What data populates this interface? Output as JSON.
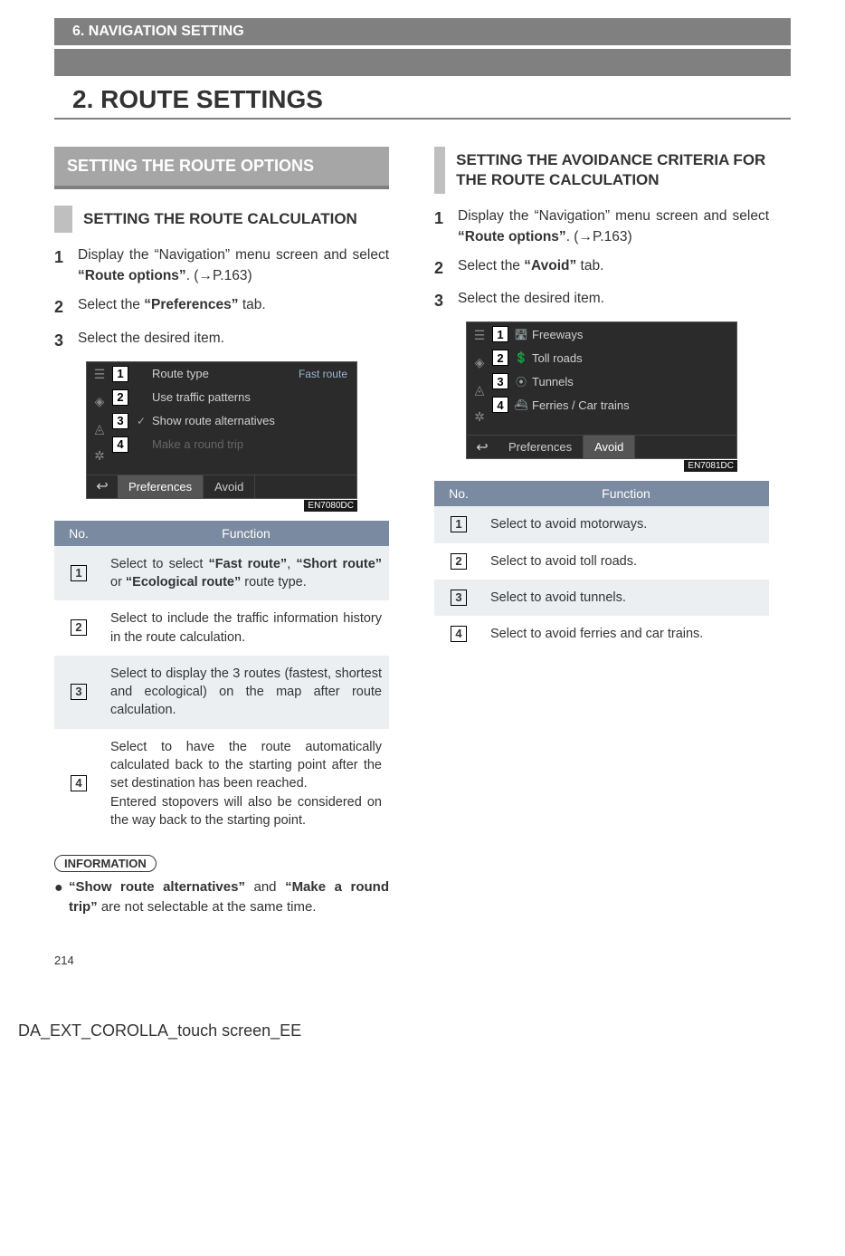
{
  "section_label": "6. NAVIGATION SETTING",
  "page_title": "2. ROUTE SETTINGS",
  "page_number": "214",
  "footer_id": "DA_EXT_COROLLA_touch screen_EE",
  "colors": {
    "gray_bar": "#808080",
    "h2_bg": "#a6a6a6",
    "h2_border": "#7f7f7f",
    "h3_bar": "#bfbfbf",
    "table_header_bg": "#7a8aa0",
    "table_alt_row": "#eceff2",
    "screenshot_bg": "#2b2b2b",
    "screenshot_text": "#d0d0d0"
  },
  "left": {
    "h2": "SETTING THE ROUTE OPTIONS",
    "h3": "SETTING THE ROUTE CALCULATION",
    "steps": [
      {
        "n": "1",
        "pre": "Display the “Navigation” menu screen and select ",
        "bold": "“Route options”",
        "post": ". (→P.163)"
      },
      {
        "n": "2",
        "pre": "Select the ",
        "bold": "“Preferences”",
        "post": " tab."
      },
      {
        "n": "3",
        "pre": "Select the desired item.",
        "bold": "",
        "post": ""
      }
    ],
    "screenshot": {
      "rows": [
        {
          "n": "1",
          "label": "Route type",
          "right": "Fast route",
          "icon": ""
        },
        {
          "n": "2",
          "label": "Use traffic patterns",
          "right": "",
          "icon": ""
        },
        {
          "n": "3",
          "label": "Show route alternatives",
          "right": "",
          "icon": "✓"
        },
        {
          "n": "4",
          "label": "Make a round trip",
          "right": "",
          "icon": ""
        }
      ],
      "tabs": {
        "active": "Preferences",
        "other": "Avoid",
        "back": "↩"
      },
      "caption": "EN7080DC"
    },
    "table": {
      "head_no": "No.",
      "head_fn": "Function",
      "rows": [
        {
          "n": "1",
          "html": "Select to select <span class='b'>“Fast route”</span>, <span class='b'>“Short route”</span> or <span class='b'>“Ecological route”</span> route type."
        },
        {
          "n": "2",
          "html": "Select to include the traffic information history in the route calculation."
        },
        {
          "n": "3",
          "html": "Select to display the 3 routes (fastest, shortest and ecological) on the map after route calculation."
        },
        {
          "n": "4",
          "html": "Select to have the route automatically calculated back to the starting point after the set destination has been reached.<br>Entered stopovers will also be considered on the way back to the starting point."
        }
      ]
    },
    "info": {
      "pill": "INFORMATION",
      "bullet": "●",
      "body_pre": "",
      "body_html": "<span class='b'>“Show route alternatives”</span> and <span class='b'>“Make a round trip”</span> are not selectable at the same time."
    }
  },
  "right": {
    "h3": "SETTING THE AVOIDANCE CRITERIA FOR THE ROUTE CALCULATION",
    "steps": [
      {
        "n": "1",
        "pre": "Display the “Navigation” menu screen and select ",
        "bold": "“Route options”",
        "post": ". (→P.163)"
      },
      {
        "n": "2",
        "pre": "Select the ",
        "bold": "“Avoid”",
        "post": " tab."
      },
      {
        "n": "3",
        "pre": "Select the desired item.",
        "bold": "",
        "post": ""
      }
    ],
    "screenshot": {
      "rows": [
        {
          "n": "1",
          "label": "Freeways",
          "icon": "🛣"
        },
        {
          "n": "2",
          "label": "Toll roads",
          "icon": "💲"
        },
        {
          "n": "3",
          "label": "Tunnels",
          "icon": "⦿"
        },
        {
          "n": "4",
          "label": "Ferries / Car trains",
          "icon": "⛴"
        }
      ],
      "tabs": {
        "active": "Avoid",
        "other": "Preferences",
        "back": "↩"
      },
      "caption": "EN7081DC"
    },
    "table": {
      "head_no": "No.",
      "head_fn": "Function",
      "rows": [
        {
          "n": "1",
          "text": "Select to avoid motorways."
        },
        {
          "n": "2",
          "text": "Select to avoid toll roads."
        },
        {
          "n": "3",
          "text": "Select to avoid tunnels."
        },
        {
          "n": "4",
          "text": "Select to avoid ferries and car trains."
        }
      ]
    }
  }
}
